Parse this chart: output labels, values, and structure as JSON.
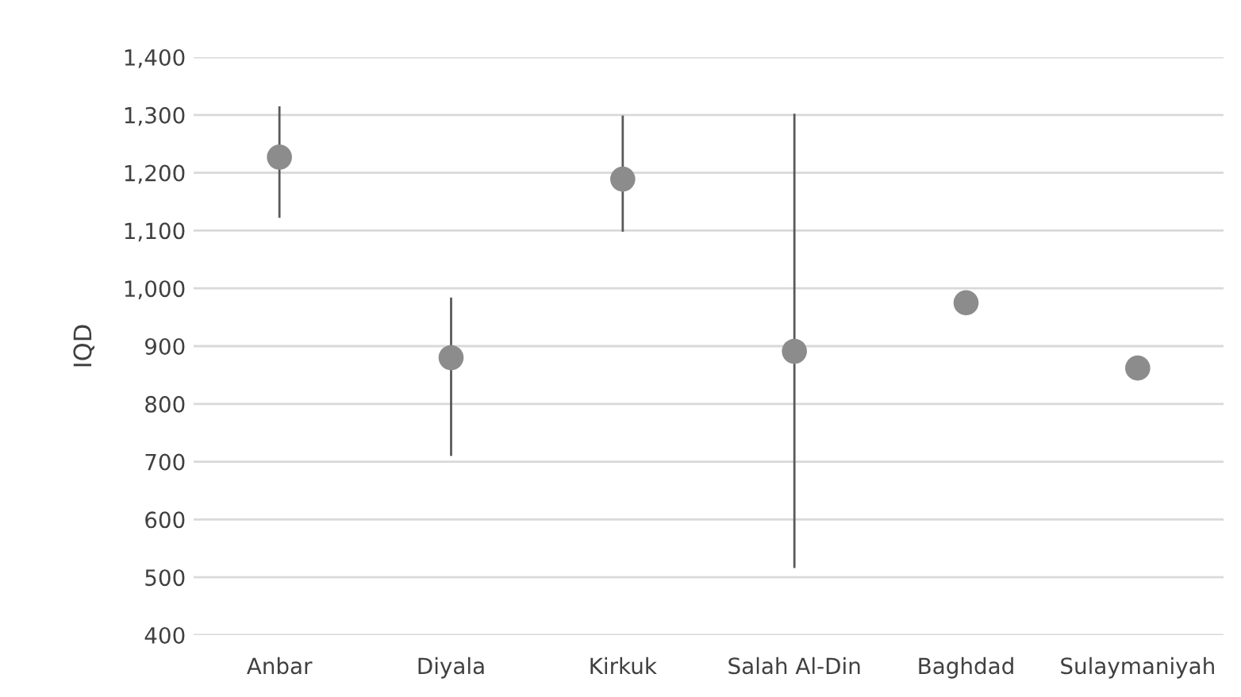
{
  "chart_data": {
    "type": "scatter",
    "categories": [
      "Anbar",
      "Diyala",
      "Kirkuk",
      "Salah Al-Din",
      "Baghdad",
      "Sulaymaniyah"
    ],
    "values": [
      1227,
      880,
      1189,
      891,
      975,
      862
    ],
    "errors": [
      [
        1122,
        1315
      ],
      [
        710,
        984
      ],
      [
        1098,
        1299
      ],
      [
        516,
        1302
      ],
      null,
      null
    ],
    "color": "#8c8c8c",
    "ylabel": "IQD",
    "ylim": [
      400,
      1400
    ],
    "yticks": [
      {
        "value": 400,
        "label": "400"
      },
      {
        "value": 500,
        "label": "500"
      },
      {
        "value": 600,
        "label": "600"
      },
      {
        "value": 700,
        "label": "700"
      },
      {
        "value": 800,
        "label": "800"
      },
      {
        "value": 900,
        "label": "900"
      },
      {
        "value": 1000,
        "label": "1,000"
      },
      {
        "value": 1100,
        "label": "1,100"
      },
      {
        "value": 1200,
        "label": "1,200"
      },
      {
        "value": 1300,
        "label": "1,300"
      },
      {
        "value": 1400,
        "label": "1,400"
      }
    ],
    "grid": "y",
    "marker": "circle"
  }
}
